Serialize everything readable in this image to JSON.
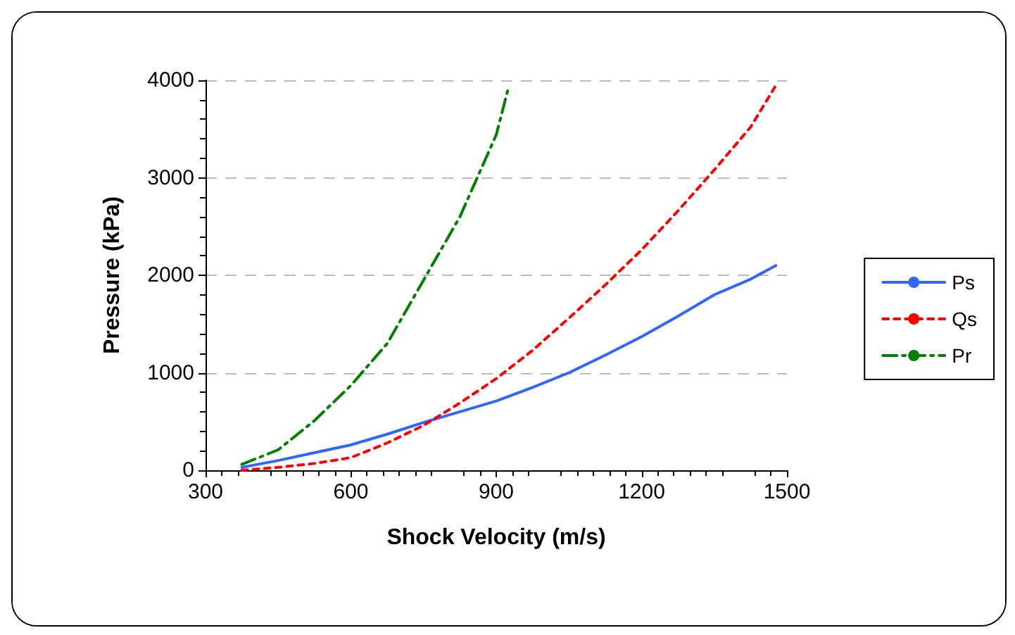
{
  "chart_data": {
    "type": "line",
    "xlabel": "Shock Velocity (m/s)",
    "ylabel": "Pressure (kPa)",
    "xlim": [
      300,
      1500
    ],
    "xticks": [
      300,
      600,
      900,
      1200,
      1500
    ],
    "ylim": [
      0,
      4000
    ],
    "yticks": [
      0,
      1000,
      2000,
      3000,
      4000
    ],
    "grid": "y",
    "legend": "right",
    "marker": "none",
    "series": [
      {
        "name": "Ps",
        "color": "#3366ff",
        "line_style": "solid",
        "x": [
          375,
          450,
          525,
          600,
          675,
          750,
          825,
          900,
          975,
          1050,
          1125,
          1200,
          1275,
          1350,
          1425,
          1477
        ],
        "values": [
          30,
          100,
          180,
          260,
          370,
          490,
          600,
          710,
          850,
          1000,
          1180,
          1370,
          1580,
          1800,
          1960,
          2100
        ]
      },
      {
        "name": "Qs",
        "color": "#ff0000",
        "line_style": "dotted",
        "x": [
          375,
          450,
          525,
          600,
          675,
          750,
          825,
          900,
          975,
          1050,
          1125,
          1200,
          1275,
          1350,
          1425,
          1475
        ],
        "values": [
          0,
          30,
          70,
          130,
          280,
          460,
          690,
          940,
          1230,
          1560,
          1900,
          2260,
          2660,
          3080,
          3520,
          3930
        ]
      },
      {
        "name": "Pr",
        "color": "#008000",
        "line_style": "dashed",
        "x": [
          375,
          450,
          525,
          600,
          675,
          750,
          825,
          900,
          925
        ],
        "values": [
          60,
          210,
          510,
          870,
          1300,
          1950,
          2600,
          3440,
          3920
        ]
      }
    ]
  }
}
